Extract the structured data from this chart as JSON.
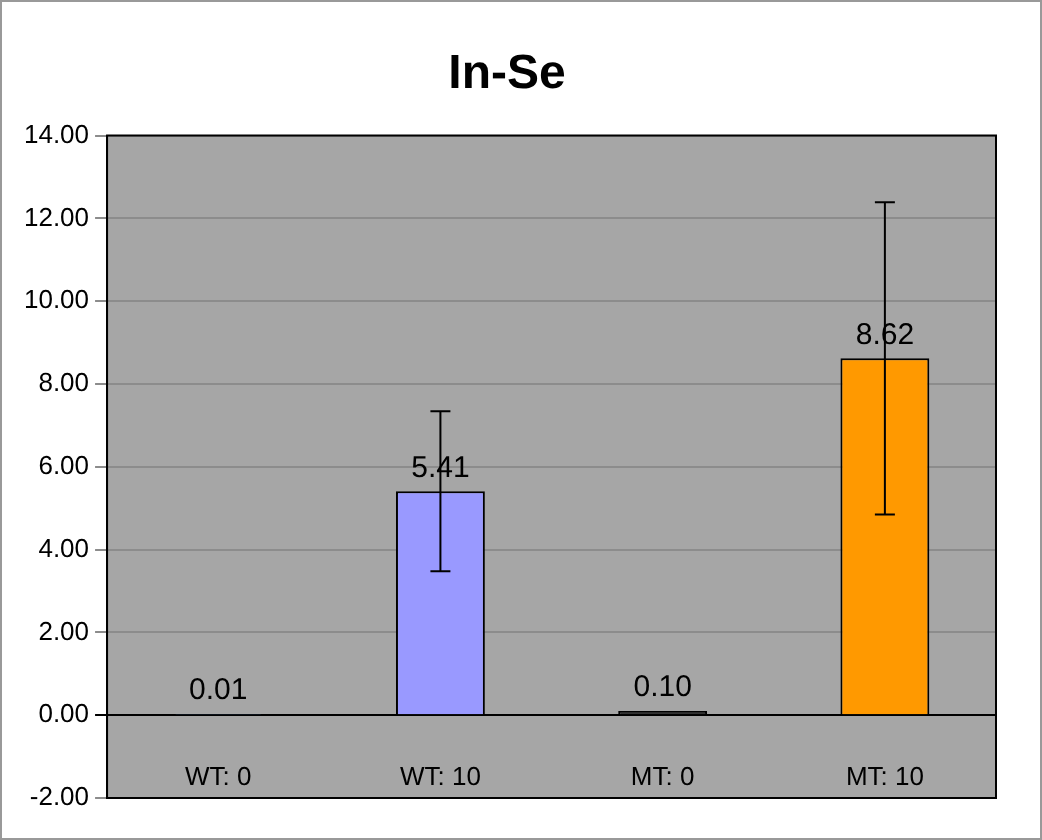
{
  "chart_data": {
    "type": "bar",
    "title": "In-Se",
    "categories": [
      "WT: 0",
      "WT: 10",
      "MT: 0",
      "MT: 10"
    ],
    "values": [
      0.01,
      5.41,
      0.1,
      8.62
    ],
    "colors": [
      "#4f81bd",
      "#9999ff",
      "#333333",
      "#ff9900"
    ],
    "errors": [
      null,
      1.93,
      null,
      3.77
    ],
    "ylim": [
      -2,
      14
    ],
    "yticks": [
      {
        "value": -2,
        "label": "-2.00"
      },
      {
        "value": 0,
        "label": "0.00"
      },
      {
        "value": 2,
        "label": "2.00"
      },
      {
        "value": 4,
        "label": "4.00"
      },
      {
        "value": 6,
        "label": "6.00"
      },
      {
        "value": 8,
        "label": "8.00"
      },
      {
        "value": 10,
        "label": "10.00"
      },
      {
        "value": 12,
        "label": "12.00"
      },
      {
        "value": 14,
        "label": "14.00"
      }
    ],
    "value_labels": [
      "0.01",
      "5.41",
      "0.10",
      "8.62"
    ],
    "grid": "y",
    "legend": false
  }
}
